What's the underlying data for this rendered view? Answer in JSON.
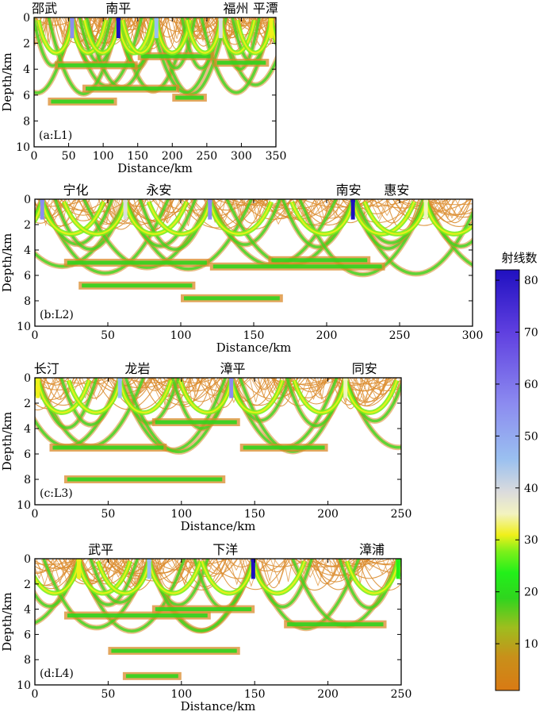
{
  "chart_data": [
    {
      "type": "heatmap",
      "panel_label": "(a:L1)",
      "xlabel": "Distance/km",
      "ylabel": "Depth/km",
      "xlim": [
        0,
        350
      ],
      "ylim": [
        0,
        10
      ],
      "x_ticks": [
        0,
        50,
        100,
        150,
        200,
        250,
        300,
        350
      ],
      "y_ticks": [
        0,
        2,
        4,
        6,
        8,
        10
      ],
      "stations": [
        {
          "name": "邵武",
          "x": 15
        },
        {
          "name": "南平",
          "x": 122
        },
        {
          "name": "福州",
          "x": 292
        },
        {
          "name": "平潭",
          "x": 335
        }
      ],
      "sources": [
        {
          "x": 55,
          "intensity": 60
        },
        {
          "x": 122,
          "intensity": 82
        },
        {
          "x": 177,
          "intensity": 55
        },
        {
          "x": 270,
          "intensity": 40
        },
        {
          "x": 343,
          "intensity": 30
        }
      ],
      "interfaces": [
        {
          "x0": 30,
          "x1": 150,
          "depth": 3.7
        },
        {
          "x0": 150,
          "x1": 260,
          "depth": 3.0
        },
        {
          "x0": 260,
          "x1": 340,
          "depth": 3.5
        },
        {
          "x0": 70,
          "x1": 210,
          "depth": 5.5
        },
        {
          "x0": 20,
          "x1": 120,
          "depth": 6.5
        },
        {
          "x0": 200,
          "x1": 250,
          "depth": 6.2
        }
      ]
    },
    {
      "type": "heatmap",
      "panel_label": "(b:L2)",
      "xlabel": "Distance/km",
      "ylabel": "Depth/km",
      "xlim": [
        0,
        300
      ],
      "ylim": [
        0,
        10
      ],
      "x_ticks": [
        0,
        50,
        100,
        150,
        200,
        250,
        300
      ],
      "y_ticks": [
        0,
        2,
        4,
        6,
        8,
        10
      ],
      "stations": [
        {
          "name": "宁化",
          "x": 28
        },
        {
          "name": "永安",
          "x": 85
        },
        {
          "name": "南安",
          "x": 215
        },
        {
          "name": "惠安",
          "x": 248
        }
      ],
      "sources": [
        {
          "x": 5,
          "intensity": 60
        },
        {
          "x": 62,
          "intensity": 40
        },
        {
          "x": 120,
          "intensity": 65
        },
        {
          "x": 218,
          "intensity": 82
        },
        {
          "x": 268,
          "intensity": 35
        }
      ],
      "interfaces": [
        {
          "x0": 20,
          "x1": 120,
          "depth": 5.0
        },
        {
          "x0": 120,
          "x1": 240,
          "depth": 5.3
        },
        {
          "x0": 30,
          "x1": 110,
          "depth": 6.8
        },
        {
          "x0": 100,
          "x1": 170,
          "depth": 7.8
        },
        {
          "x0": 160,
          "x1": 230,
          "depth": 4.8
        }
      ]
    },
    {
      "type": "heatmap",
      "panel_label": "(c:L3)",
      "xlabel": "Distance/km",
      "ylabel": "Depth/km",
      "xlim": [
        0,
        250
      ],
      "ylim": [
        0,
        10
      ],
      "x_ticks": [
        0,
        50,
        100,
        150,
        200,
        250
      ],
      "y_ticks": [
        0,
        2,
        4,
        6,
        8,
        10
      ],
      "stations": [
        {
          "name": "长汀",
          "x": 8
        },
        {
          "name": "龙岩",
          "x": 70
        },
        {
          "name": "漳平",
          "x": 135
        },
        {
          "name": "同安",
          "x": 225
        }
      ],
      "sources": [
        {
          "x": 2,
          "intensity": 30
        },
        {
          "x": 58,
          "intensity": 55
        },
        {
          "x": 134,
          "intensity": 60
        },
        {
          "x": 212,
          "intensity": 35
        }
      ],
      "interfaces": [
        {
          "x0": 10,
          "x1": 90,
          "depth": 5.5
        },
        {
          "x0": 140,
          "x1": 200,
          "depth": 5.5
        },
        {
          "x0": 20,
          "x1": 130,
          "depth": 8.0
        },
        {
          "x0": 80,
          "x1": 140,
          "depth": 3.5
        }
      ]
    },
    {
      "type": "heatmap",
      "panel_label": "(d:L4)",
      "xlabel": "Distance/km",
      "ylabel": "Depth/km",
      "xlim": [
        0,
        250
      ],
      "ylim": [
        0,
        10
      ],
      "x_ticks": [
        0,
        50,
        100,
        150,
        200,
        250
      ],
      "y_ticks": [
        0,
        2,
        4,
        6,
        8,
        10
      ],
      "stations": [
        {
          "name": "武平",
          "x": 45
        },
        {
          "name": "下洋",
          "x": 130
        },
        {
          "name": "漳浦",
          "x": 230
        }
      ],
      "sources": [
        {
          "x": 30,
          "intensity": 30
        },
        {
          "x": 78,
          "intensity": 50
        },
        {
          "x": 149,
          "intensity": 82
        },
        {
          "x": 248,
          "intensity": 20
        }
      ],
      "interfaces": [
        {
          "x0": 80,
          "x1": 150,
          "depth": 4.0
        },
        {
          "x0": 20,
          "x1": 120,
          "depth": 4.5
        },
        {
          "x0": 170,
          "x1": 240,
          "depth": 5.2
        },
        {
          "x0": 50,
          "x1": 140,
          "depth": 7.3
        },
        {
          "x0": 60,
          "x1": 100,
          "depth": 9.3
        }
      ]
    }
  ],
  "colorbar": {
    "title": "射线数",
    "min": 1,
    "max": 82,
    "ticks": [
      10,
      20,
      30,
      40,
      50,
      60,
      70,
      80
    ],
    "colors": [
      "#d97a14",
      "#c8901a",
      "#9ebe1e",
      "#2fd51e",
      "#22f01a",
      "#7cf01a",
      "#f0f01a",
      "#f3f3c0",
      "#dcdcdc",
      "#9ac0f0",
      "#8c8cf0",
      "#6040e0",
      "#2010c0"
    ]
  }
}
